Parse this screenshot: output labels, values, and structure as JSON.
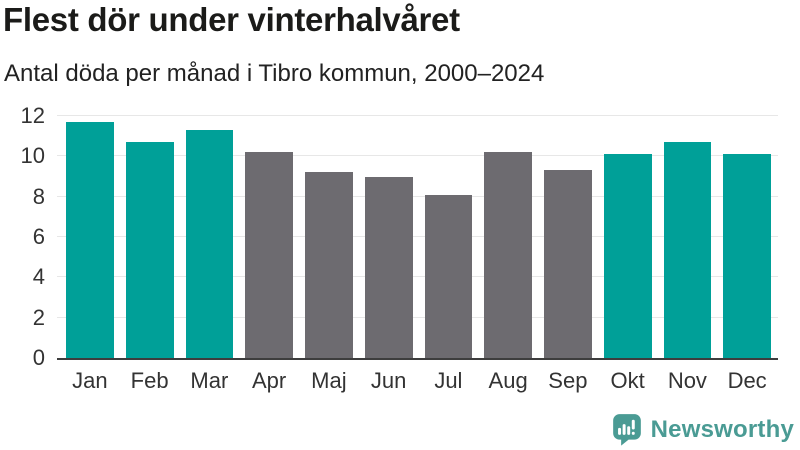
{
  "chart_data": {
    "type": "bar",
    "title": "Flest dör under vinterhalvåret",
    "subtitle": "Antal döda per månad i Tibro kommun, 2000–2024",
    "categories": [
      "Jan",
      "Feb",
      "Mar",
      "Apr",
      "Maj",
      "Jun",
      "Jul",
      "Aug",
      "Sep",
      "Okt",
      "Nov",
      "Dec"
    ],
    "values": [
      11.7,
      10.7,
      11.3,
      10.2,
      9.2,
      9.0,
      8.1,
      10.2,
      9.3,
      10.1,
      10.7,
      10.1
    ],
    "highlight": [
      true,
      true,
      true,
      false,
      false,
      false,
      false,
      false,
      false,
      true,
      true,
      true
    ],
    "xlabel": "",
    "ylabel": "",
    "ylim": [
      0,
      12
    ],
    "yticks": [
      0,
      2,
      4,
      6,
      8,
      10,
      12
    ],
    "grid": "horizontal",
    "legend": "none",
    "colors": {
      "highlight": "#00a098",
      "normal": "#6d6b70",
      "axis_line": "#3d3d3d",
      "gridline": "#e7e7e7",
      "tick_text": "#333333"
    }
  },
  "branding": {
    "name": "Newsworthy",
    "color": "#4a9b94",
    "icon": "newsworthy-logo-icon"
  }
}
